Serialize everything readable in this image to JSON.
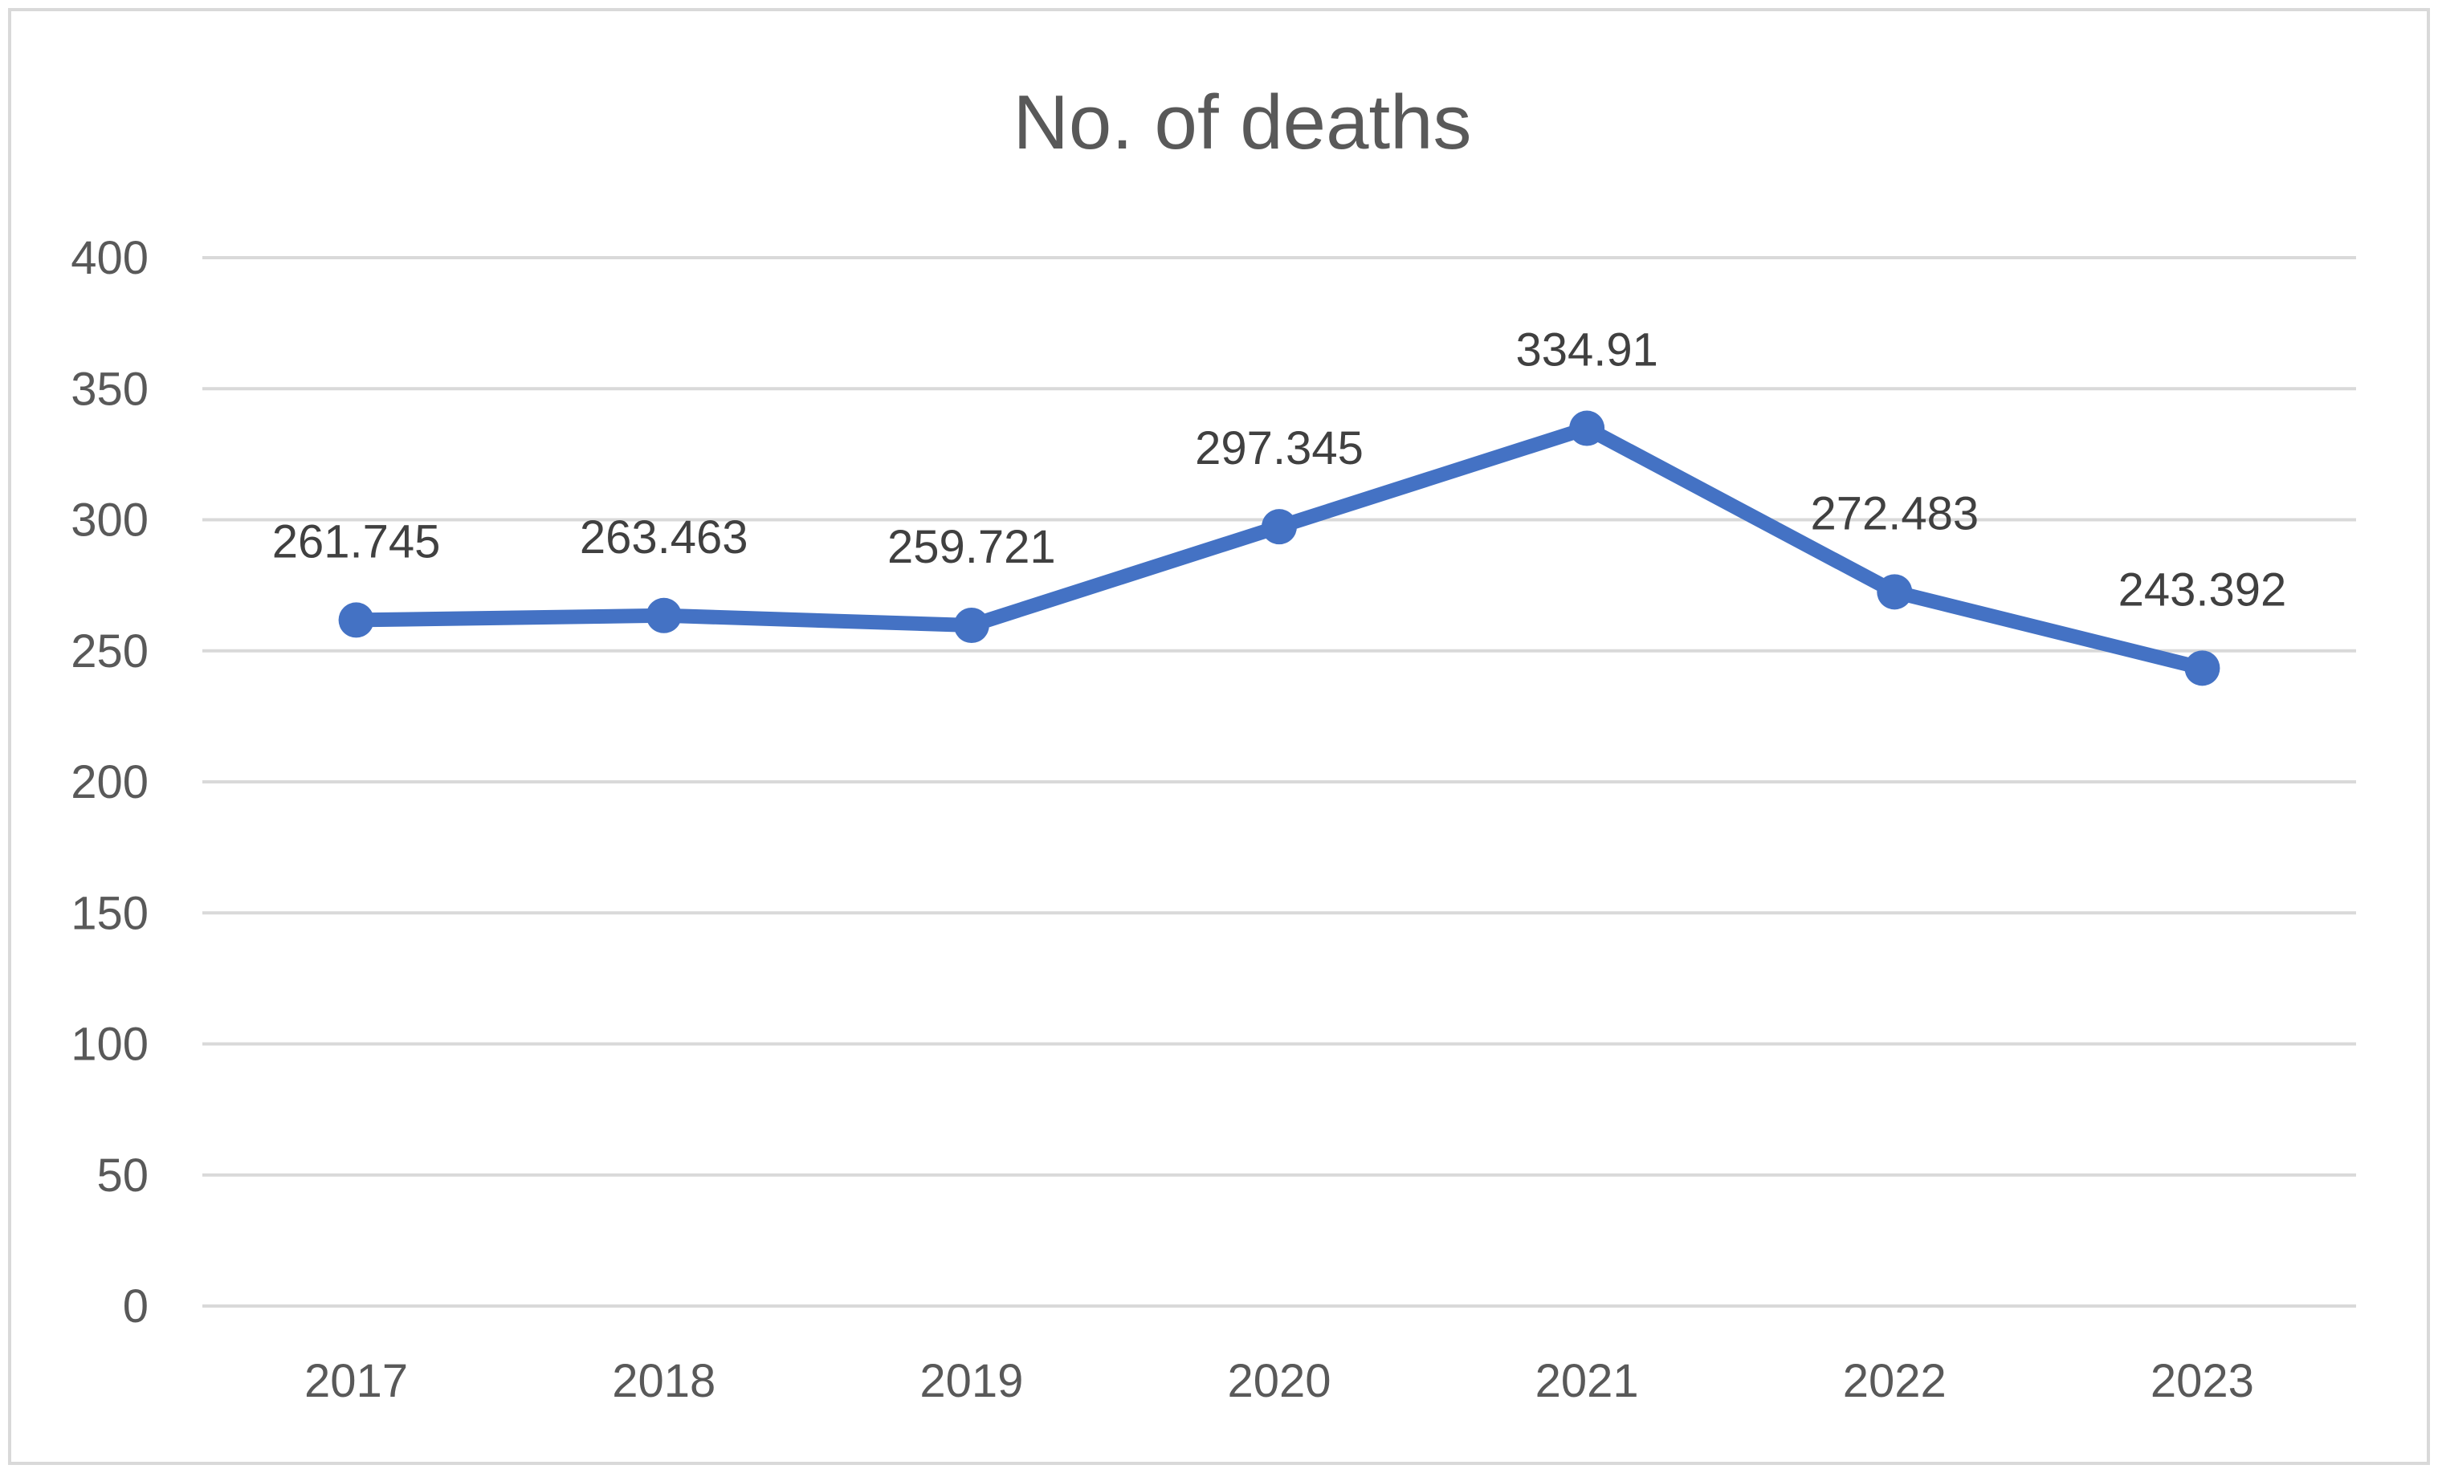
{
  "chart_data": {
    "type": "line",
    "title": "No. of deaths",
    "xlabel": "",
    "ylabel": "",
    "categories": [
      "2017",
      "2018",
      "2019",
      "2020",
      "2021",
      "2022",
      "2023"
    ],
    "series": [
      {
        "values": [
          261.745,
          263.463,
          259.721,
          297.345,
          334.91,
          272.483,
          243.392
        ],
        "color": "#4472C4"
      }
    ],
    "ylim": [
      0,
      400
    ],
    "yticks": [
      0,
      50,
      100,
      150,
      200,
      250,
      300,
      350,
      400
    ],
    "ytick_labels": [
      "0",
      "50",
      "100",
      "150",
      "200",
      "250",
      "300",
      "350",
      "400"
    ],
    "data_labels": [
      "261.745",
      "263.463",
      "259.721",
      "297.345",
      "334.91",
      "272.483",
      "243.392"
    ],
    "grid": true,
    "gridline_color": "#D9D9D9",
    "legend": "none"
  }
}
